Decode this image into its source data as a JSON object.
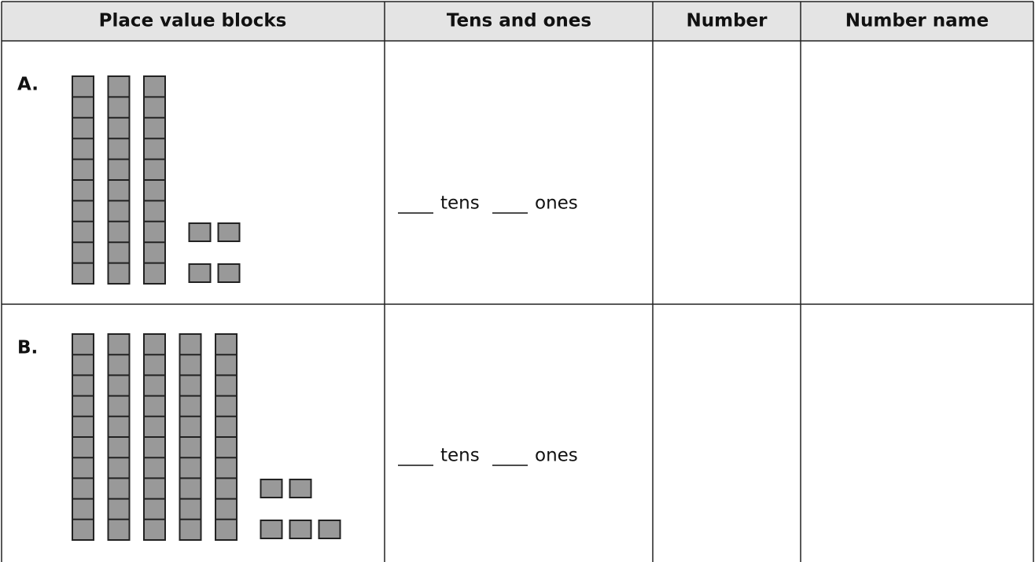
{
  "table": {
    "header": [
      "Place value blocks",
      "Tens and ones",
      "Number",
      "Number name"
    ],
    "rows": [
      {
        "label": "A.",
        "tens": 3,
        "ones": 4,
        "words": [
          "tens",
          "ones"
        ]
      },
      {
        "label": "B.",
        "tens": 5,
        "ones": 5,
        "words": [
          "tens",
          "ones"
        ]
      }
    ]
  }
}
